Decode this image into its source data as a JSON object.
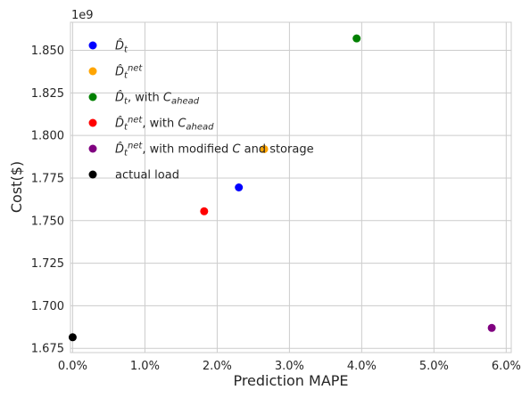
{
  "chart_data": {
    "type": "scatter",
    "xlabel": "Prediction MAPE",
    "ylabel": "Cost($)",
    "y_offset_label": "1e9",
    "xlim": [
      -0.0003,
      0.0607
    ],
    "ylim": [
      1.6725,
      1.8665
    ],
    "x_ticks": [
      0.0,
      0.01,
      0.02,
      0.03,
      0.04,
      0.05,
      0.06
    ],
    "x_tick_labels": [
      "0.0%",
      "1.0%",
      "2.0%",
      "3.0%",
      "4.0%",
      "5.0%",
      "6.0%"
    ],
    "y_ticks": [
      1.675,
      1.7,
      1.725,
      1.75,
      1.775,
      1.8,
      1.825,
      1.85
    ],
    "y_tick_labels": [
      "1.675",
      "1.700",
      "1.725",
      "1.750",
      "1.775",
      "1.800",
      "1.825",
      "1.850"
    ],
    "grid": true,
    "legend_position": "top-left",
    "series": [
      {
        "name": "D̂_t",
        "legend": [
          {
            "t": "D̂",
            "it": true
          },
          {
            "t": "t",
            "sub": true,
            "it": true
          }
        ],
        "color": "#0000ff",
        "x": [
          0.023
        ],
        "y": [
          1.7695
        ]
      },
      {
        "name": "D̂_t^net",
        "legend": [
          {
            "t": "D̂",
            "it": true
          },
          {
            "t": "t",
            "sub": true,
            "it": true
          },
          {
            "t": "net",
            "sup": true,
            "it": true
          }
        ],
        "color": "#ffa500",
        "x": [
          0.0265
        ],
        "y": [
          1.792
        ]
      },
      {
        "name": "D̂_t, with C_ahead",
        "legend": [
          {
            "t": "D̂",
            "it": true
          },
          {
            "t": "t",
            "sub": true,
            "it": true
          },
          {
            "t": ", with "
          },
          {
            "t": "C",
            "it": true
          },
          {
            "t": "ahead",
            "sub": true,
            "it": true
          }
        ],
        "color": "#008000",
        "x": [
          0.0393
        ],
        "y": [
          1.857
        ]
      },
      {
        "name": "D̂_t^net, with C_ahead",
        "legend": [
          {
            "t": "D̂",
            "it": true
          },
          {
            "t": "t",
            "sub": true,
            "it": true
          },
          {
            "t": "net",
            "sup": true,
            "it": true
          },
          {
            "t": ", with "
          },
          {
            "t": "C",
            "it": true
          },
          {
            "t": "ahead",
            "sub": true,
            "it": true
          }
        ],
        "color": "#ff0000",
        "x": [
          0.0182
        ],
        "y": [
          1.7555
        ]
      },
      {
        "name": "D̂_t^net, with modified C and storage",
        "legend": [
          {
            "t": "D̂",
            "it": true
          },
          {
            "t": "t",
            "sub": true,
            "it": true
          },
          {
            "t": "net",
            "sup": true,
            "it": true
          },
          {
            "t": ", with modified "
          },
          {
            "t": "C",
            "it": true
          },
          {
            "t": " and storage"
          }
        ],
        "color": "#800080",
        "x": [
          0.058
        ],
        "y": [
          1.687
        ]
      },
      {
        "name": "actual load",
        "legend": [
          {
            "t": "actual load"
          }
        ],
        "color": "#000000",
        "x": [
          0.0
        ],
        "y": [
          1.6815
        ]
      }
    ]
  }
}
